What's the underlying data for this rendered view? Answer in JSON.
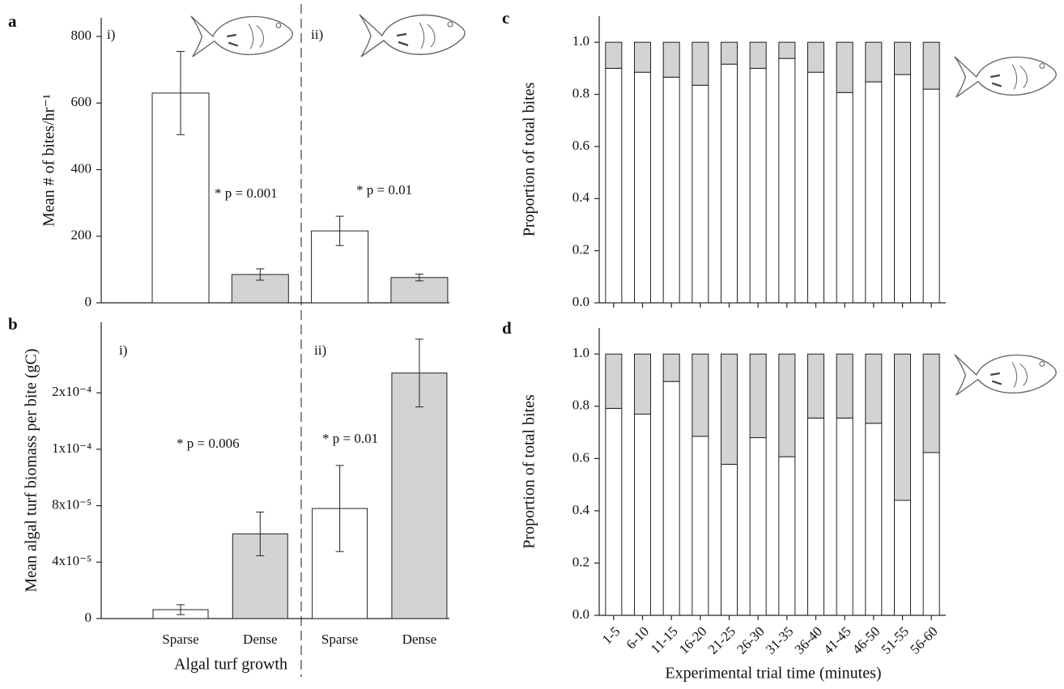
{
  "chart_data": [
    {
      "type": "bar",
      "panel": "a",
      "ylabel": "Mean # of bites/hr⁻¹",
      "values": [
        630,
        85,
        216,
        76
      ],
      "errors": [
        125,
        17,
        44,
        10
      ],
      "colors": [
        "#ffffff",
        "#d3d3d3",
        "#ffffff",
        "#d3d3d3"
      ],
      "ylim": [
        0,
        856
      ],
      "yticks": [
        0,
        200,
        400,
        600,
        800
      ],
      "annotations": [
        "i)",
        "* p = 0.001",
        "ii)",
        "* p = 0.01"
      ]
    },
    {
      "type": "bar",
      "panel": "b",
      "ylabel": "Mean algal turf biomass per bite (gC)",
      "xlabel": "Algal turf growth",
      "categories": [
        "Sparse",
        "Dense",
        "Sparse",
        "Dense"
      ],
      "values": [
        6.3e-06,
        6e-05,
        7.8e-05,
        0.000174
      ],
      "errors": [
        3.5e-06,
        1.55e-05,
        3.05e-05,
        2.4e-05
      ],
      "colors": [
        "#ffffff",
        "#d3d3d3",
        "#ffffff",
        "#d3d3d3"
      ],
      "ylim": [
        0,
        0.00021
      ],
      "yticks": [
        0,
        {
          "value": 4e-05,
          "label": "4x10⁻⁵"
        },
        {
          "value": 8e-05,
          "label": "8x10⁻⁵"
        },
        {
          "value": 0.00012,
          "label": "1x10⁻⁴"
        },
        {
          "value": 0.00016,
          "label": "2x10⁻⁴"
        }
      ],
      "annotations": [
        "i)",
        "* p = 0.006",
        "ii)",
        "* p = 0.01"
      ]
    },
    {
      "type": "stacked_bar",
      "panel": "c",
      "ylabel": "Proportion of total bites",
      "series": [
        {
          "color": "#ffffff",
          "values": [
            0.9,
            0.885,
            0.866,
            0.835,
            0.916,
            0.9,
            0.938,
            0.885,
            0.807,
            0.848,
            0.876,
            0.82
          ]
        },
        {
          "color": "#d3d3d3",
          "values": [
            0.1,
            0.115,
            0.134,
            0.165,
            0.084,
            0.1,
            0.062,
            0.115,
            0.193,
            0.152,
            0.124,
            0.18
          ]
        }
      ],
      "ylim": [
        0,
        1.1
      ],
      "yticks": [
        {
          "value": 0,
          "label": "0.0"
        },
        0.2,
        0.4,
        0.6,
        0.8,
        {
          "value": 1,
          "label": "1.0"
        }
      ]
    },
    {
      "type": "stacked_bar",
      "panel": "d",
      "ylabel": "Proportion of total bites",
      "xlabel": "Experimental trial time (minutes)",
      "categories": [
        "1-5",
        "6-10",
        "11-15",
        "16-20",
        "21-25",
        "26-30",
        "31-35",
        "36-40",
        "41-45",
        "46-50",
        "51-55",
        "56-60"
      ],
      "series": [
        {
          "color": "#ffffff",
          "values": [
            0.792,
            0.77,
            0.895,
            0.685,
            0.578,
            0.68,
            0.607,
            0.755,
            0.755,
            0.735,
            0.44,
            0.623
          ]
        },
        {
          "color": "#d3d3d3",
          "values": [
            0.208,
            0.23,
            0.105,
            0.315,
            0.422,
            0.32,
            0.393,
            0.245,
            0.245,
            0.265,
            0.56,
            0.377
          ]
        }
      ],
      "ylim": [
        0,
        1.1
      ],
      "yticks": [
        {
          "value": 0,
          "label": "0.0"
        },
        0.2,
        0.4,
        0.6,
        0.8,
        {
          "value": 1,
          "label": "1.0"
        }
      ]
    }
  ]
}
